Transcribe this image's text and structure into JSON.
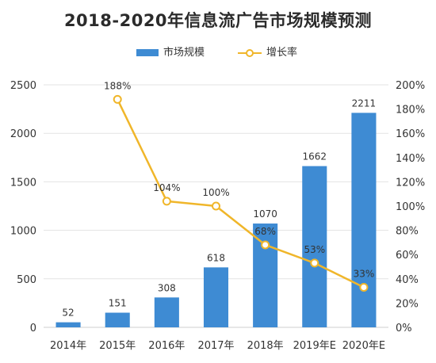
{
  "title": "2018-2020年信息流广告市场规模预测",
  "legend": {
    "bar_label": "市场规模",
    "line_label": "增长率"
  },
  "colors": {
    "bar": "#3e8bd3",
    "line": "#f0b62a",
    "text": "#333333",
    "grid": "#e3e3e3"
  },
  "chart_data": {
    "type": "bar",
    "categories": [
      "2014年",
      "2015年",
      "2016年",
      "2017年",
      "2018年",
      "2019年E",
      "2020年E"
    ],
    "series": [
      {
        "name": "市场规模",
        "type": "bar",
        "axis": "left",
        "values": [
          52,
          151,
          308,
          618,
          1070,
          1662,
          2211
        ],
        "labels": [
          "52",
          "151",
          "308",
          "618",
          "1070",
          "1662",
          "2211"
        ]
      },
      {
        "name": "增长率",
        "type": "line",
        "axis": "right",
        "values": [
          null,
          188,
          104,
          100,
          68,
          53,
          33
        ],
        "labels": [
          "",
          "188%",
          "104%",
          "100%",
          "68%",
          "53%",
          "33%"
        ]
      }
    ],
    "y_left": {
      "min": 0,
      "max": 2500,
      "ticks": [
        0,
        500,
        1000,
        1500,
        2000,
        2500
      ],
      "tick_labels": [
        "0",
        "500",
        "1000",
        "1500",
        "2000",
        "2500"
      ]
    },
    "y_right": {
      "min": 0,
      "max": 200,
      "ticks": [
        0,
        20,
        40,
        60,
        80,
        100,
        120,
        140,
        160,
        180,
        200
      ],
      "tick_labels": [
        "0%",
        "20%",
        "40%",
        "60%",
        "80%",
        "100%",
        "120%",
        "140%",
        "160%",
        "180%",
        "200%"
      ]
    },
    "grid": true,
    "legend_position": "top-center"
  }
}
